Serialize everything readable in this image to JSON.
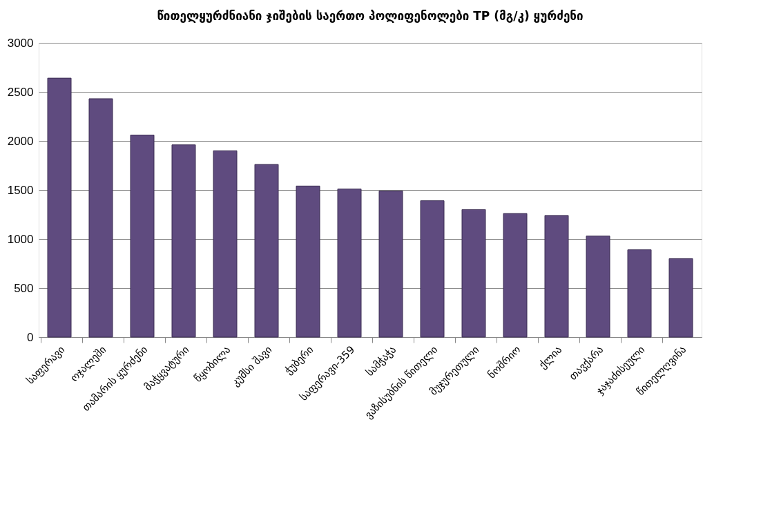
{
  "chart_data": {
    "type": "bar",
    "title": "წითელყურძნიანი ჯიშების საერთო პოლიფენოლები TP (მგ/კ) ყურძენი",
    "categories": [
      "საფერავი",
      "ოჯალეში",
      "თამარის ყურძენი",
      "მაჭყვატური",
      "წყობილა",
      "კუმსი შავი",
      "ჭუბერი",
      "საფერავი-359",
      "სამჭაჭა",
      "ვაზისუბნის წითელი",
      "მუჯურეთული",
      "ნოშრიო",
      "ქლია",
      "თავქარა",
      "ჯაჯაძისეული",
      "წითელღვინა"
    ],
    "values": [
      2640,
      2430,
      2060,
      1960,
      1900,
      1760,
      1540,
      1510,
      1490,
      1390,
      1300,
      1260,
      1240,
      1030,
      890,
      800
    ],
    "color": "#5f4b7f",
    "ylim": [
      0,
      3000
    ],
    "yticks": [
      0,
      500,
      1000,
      1500,
      2000,
      2500,
      3000
    ],
    "grid": "y"
  }
}
